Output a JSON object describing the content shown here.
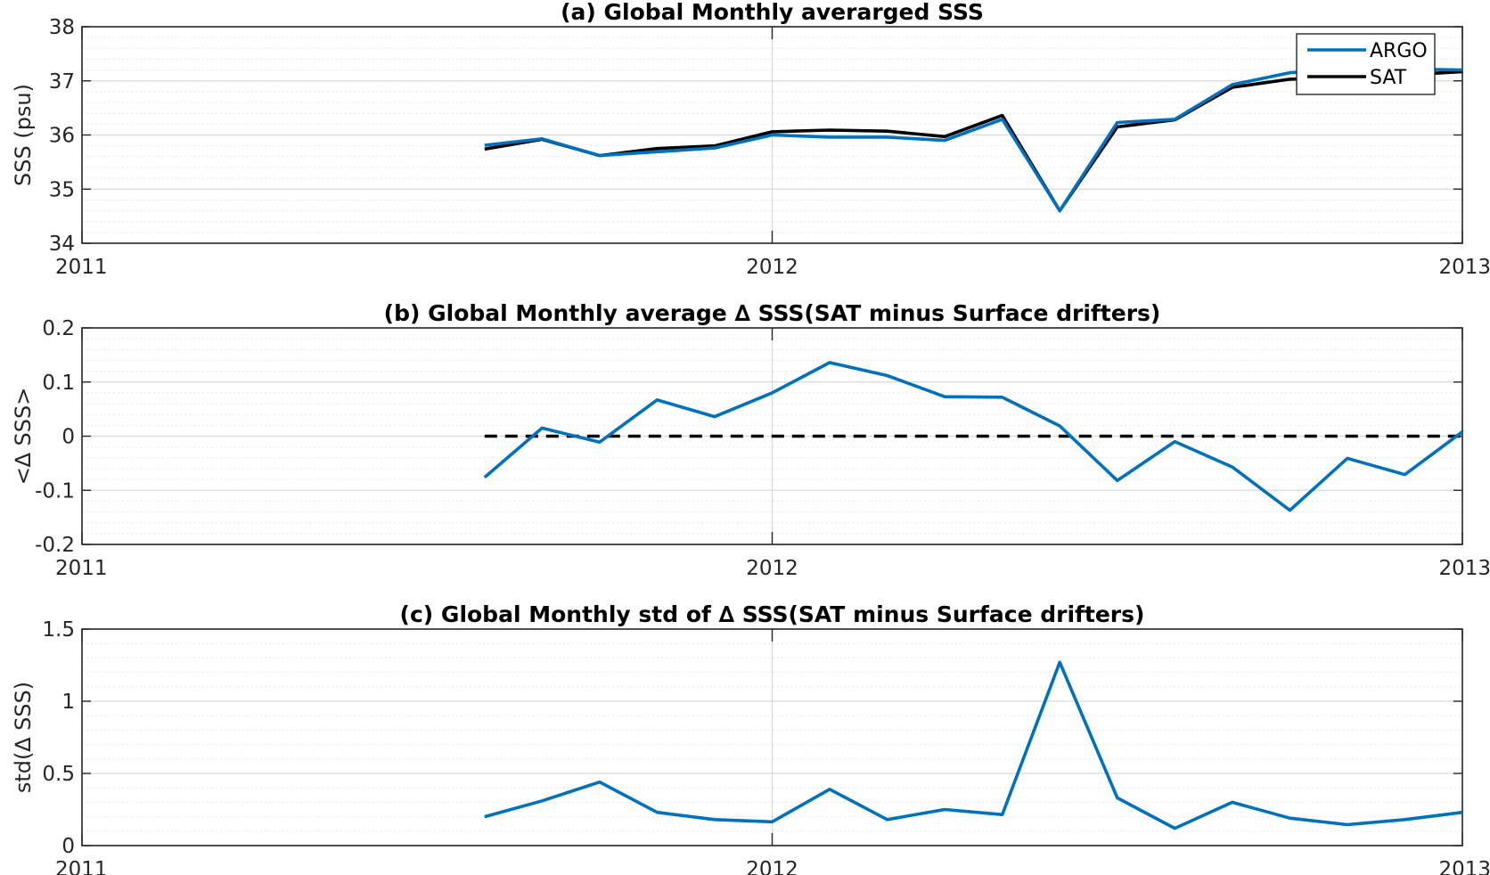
{
  "chart_data": [
    {
      "id": "a",
      "type": "line",
      "title": "(a) Global Monthly averarged SSS",
      "xlabel": "",
      "ylabel": "SSS (psu)",
      "x_ticks": [
        "2011",
        "2012",
        "2013"
      ],
      "y_ticks": [
        "34",
        "35",
        "36",
        "37",
        "38"
      ],
      "ylim": [
        34,
        38
      ],
      "xlim": [
        "2011-01",
        "2013-01"
      ],
      "grid": true,
      "legend": "top-right",
      "x": [
        "2011-08",
        "2011-09",
        "2011-10",
        "2011-11",
        "2011-12",
        "2012-01",
        "2012-02",
        "2012-03",
        "2012-04",
        "2012-05",
        "2012-06",
        "2012-07",
        "2012-08",
        "2012-09",
        "2012-10",
        "2012-11",
        "2012-12",
        "2013-01"
      ],
      "series": [
        {
          "name": "ARGO",
          "color": "#0072bd",
          "style": "solid",
          "values": [
            35.81,
            35.93,
            35.62,
            35.69,
            35.76,
            36.0,
            35.96,
            35.96,
            35.9,
            36.29,
            34.6,
            36.23,
            36.29,
            36.93,
            37.15,
            37.2,
            37.22,
            37.2
          ]
        },
        {
          "name": "SAT",
          "color": "#000000",
          "style": "solid",
          "values": [
            35.74,
            35.92,
            35.62,
            35.75,
            35.8,
            36.06,
            36.09,
            36.07,
            35.97,
            36.36,
            34.6,
            36.15,
            36.28,
            36.88,
            37.03,
            37.08,
            37.11,
            37.17
          ]
        }
      ]
    },
    {
      "id": "b",
      "type": "line",
      "title": "(b) Global Monthly average ∆ SSS(SAT minus Surface drifters)",
      "xlabel": "",
      "ylabel": "<∆ SSS>",
      "x_ticks": [
        "2011",
        "2012",
        "2013"
      ],
      "y_ticks": [
        "-0.2",
        "-0.1",
        "0",
        "0.1",
        "0.2"
      ],
      "ylim": [
        -0.2,
        0.2
      ],
      "xlim": [
        "2011-01",
        "2013-01"
      ],
      "grid": true,
      "x": [
        "2011-08",
        "2011-09",
        "2011-10",
        "2011-11",
        "2011-12",
        "2012-01",
        "2012-02",
        "2012-03",
        "2012-04",
        "2012-05",
        "2012-06",
        "2012-07",
        "2012-08",
        "2012-09",
        "2012-10",
        "2012-11",
        "2012-12",
        "2013-01"
      ],
      "series": [
        {
          "name": "",
          "color": "#0072bd",
          "style": "solid",
          "values": [
            -0.076,
            0.015,
            -0.011,
            0.067,
            0.036,
            0.08,
            0.136,
            0.112,
            0.073,
            0.072,
            0.019,
            -0.082,
            -0.01,
            -0.057,
            -0.137,
            -0.041,
            -0.071,
            0.008
          ]
        },
        {
          "name": "",
          "color": "#000000",
          "style": "dashed",
          "values": [
            0,
            0,
            0,
            0,
            0,
            0,
            0,
            0,
            0,
            0,
            0,
            0,
            0,
            0,
            0,
            0,
            0,
            0
          ]
        }
      ]
    },
    {
      "id": "c",
      "type": "line",
      "title": "(c) Global Monthly std of ∆ SSS(SAT minus Surface drifters)",
      "xlabel": "",
      "ylabel": "std(∆ SSS)",
      "x_ticks": [
        "2011",
        "2012",
        "2013"
      ],
      "y_ticks": [
        "0",
        "0.5",
        "1",
        "1.5"
      ],
      "ylim": [
        0,
        1.5
      ],
      "xlim": [
        "2011-01",
        "2013-01"
      ],
      "grid": true,
      "x": [
        "2011-08",
        "2011-09",
        "2011-10",
        "2011-11",
        "2011-12",
        "2012-01",
        "2012-02",
        "2012-03",
        "2012-04",
        "2012-05",
        "2012-06",
        "2012-07",
        "2012-08",
        "2012-09",
        "2012-10",
        "2012-11",
        "2012-12",
        "2013-01"
      ],
      "series": [
        {
          "name": "",
          "color": "#0072bd",
          "style": "solid",
          "values": [
            0.2,
            0.31,
            0.44,
            0.23,
            0.18,
            0.165,
            0.39,
            0.18,
            0.25,
            0.215,
            1.27,
            0.33,
            0.12,
            0.3,
            0.19,
            0.145,
            0.18,
            0.23
          ]
        }
      ]
    }
  ]
}
